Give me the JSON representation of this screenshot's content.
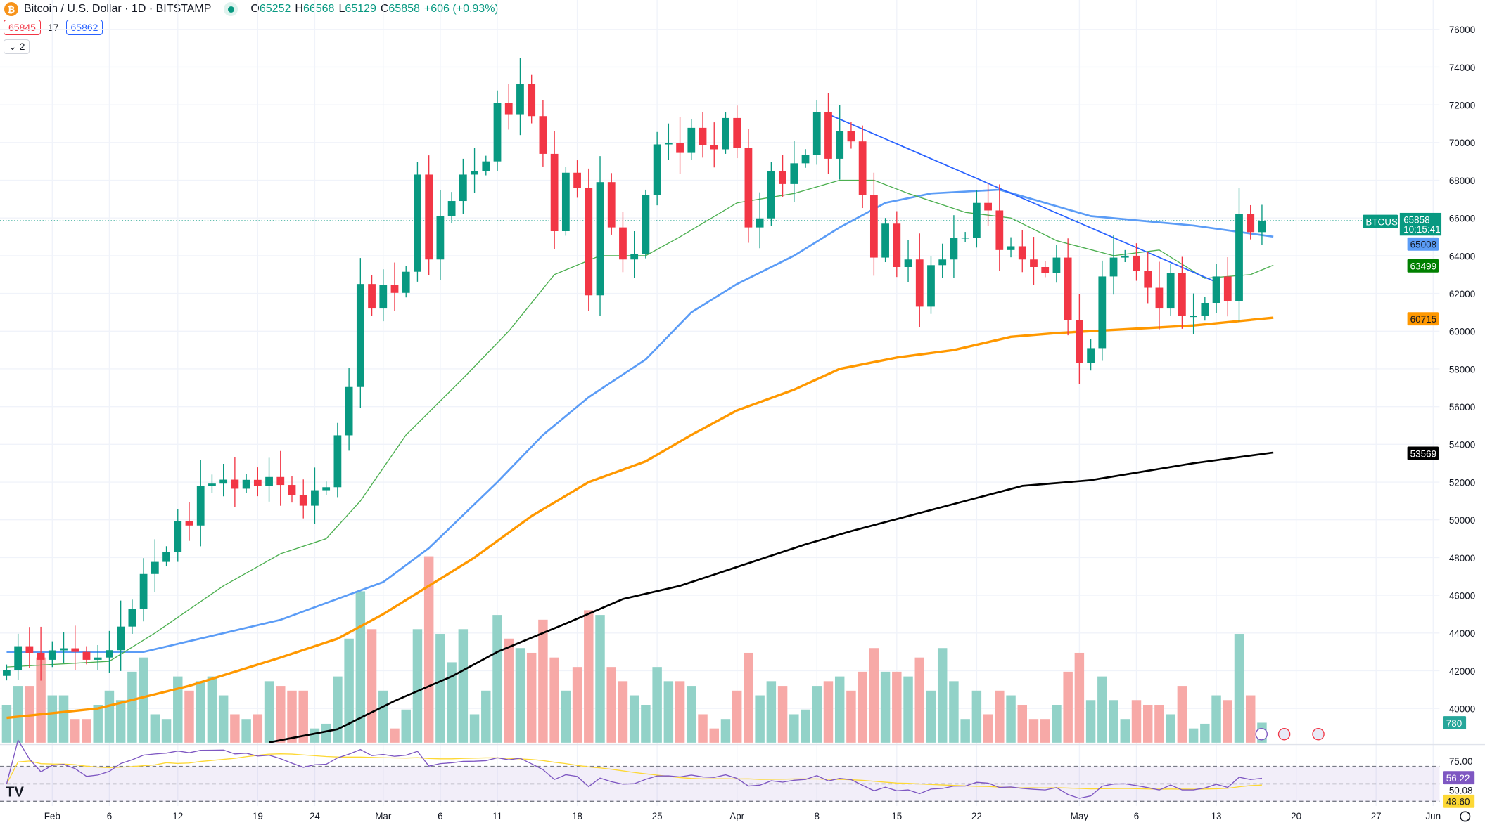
{
  "header": {
    "symbol_icon": "bitcoin-icon",
    "title": "Bitcoin / U.S. Dollar · 1D · BITSTAMP",
    "market_status": "open",
    "open_label": "O",
    "open": "65252",
    "high_label": "H",
    "high": "66568",
    "low_label": "L",
    "low": "65129",
    "close_label": "C",
    "close": "65858",
    "change": "+606 (+0.93%)"
  },
  "trade": {
    "sell": "65845",
    "spread": "17",
    "buy": "65862"
  },
  "indicators_toggle": "2",
  "colors": {
    "up": "#089981",
    "down": "#f23645",
    "vol_up": "#92d2c8",
    "vol_down": "#f7a9a7",
    "ma20": "#4caf50",
    "ma50": "#5b9cf6",
    "ma100": "#ff9800",
    "ma200": "#000000",
    "trendline": "#2962ff",
    "rsi": "#7e57c2",
    "rsi_ma": "#fdd835"
  },
  "price_axis": {
    "ticks": [
      "76000",
      "74000",
      "72000",
      "70000",
      "68000",
      "66000",
      "64000",
      "62000",
      "60000",
      "58000",
      "56000",
      "54000",
      "52000",
      "50000",
      "48000",
      "46000",
      "44000",
      "42000",
      "40000"
    ]
  },
  "time_axis": {
    "ticks": [
      {
        "label": "Feb",
        "date": "02-01"
      },
      {
        "label": "6",
        "date": "02-06"
      },
      {
        "label": "12",
        "date": "02-12"
      },
      {
        "label": "19",
        "date": "02-19"
      },
      {
        "label": "24",
        "date": "02-24"
      },
      {
        "label": "Mar",
        "date": "03-01"
      },
      {
        "label": "6",
        "date": "03-06"
      },
      {
        "label": "11",
        "date": "03-11"
      },
      {
        "label": "18",
        "date": "03-18"
      },
      {
        "label": "25",
        "date": "03-25"
      },
      {
        "label": "Apr",
        "date": "04-01"
      },
      {
        "label": "8",
        "date": "04-08"
      },
      {
        "label": "15",
        "date": "04-15"
      },
      {
        "label": "22",
        "date": "04-22"
      },
      {
        "label": "May",
        "date": "05-01"
      },
      {
        "label": "6",
        "date": "05-06"
      },
      {
        "label": "13",
        "date": "05-13"
      },
      {
        "label": "20",
        "date": "05-20"
      },
      {
        "label": "27",
        "date": "05-27"
      },
      {
        "label": "Jun",
        "date": "06-01"
      }
    ]
  },
  "labels": {
    "symbol": "BTCUSD",
    "last_price": "65858",
    "countdown": "10:15:41",
    "ma50": "65008",
    "ma20": "63499",
    "ma100": "60715",
    "ma200": "53569",
    "volume": "780",
    "rsi_top": "75.00",
    "rsi": "56.22",
    "rsi_mid": "50.08",
    "rsi_ma": "48.60"
  },
  "chart_data": {
    "type": "candlestick",
    "first_date": "01-28",
    "close": [
      42030,
      43300,
      42950,
      42580,
      43080,
      43190,
      43000,
      42580,
      42700,
      43090,
      44340,
      45290,
      47130,
      47770,
      48300,
      49920,
      49700,
      51800,
      51920,
      52130,
      51650,
      52120,
      51780,
      52270,
      51850,
      51300,
      50750,
      51570,
      51730,
      54480,
      57040,
      62500,
      61200,
      62440,
      62030,
      63150,
      68300,
      63800,
      66100,
      66900,
      68300,
      68500,
      69000,
      72100,
      71500,
      73100,
      71400,
      69400,
      65300,
      68400,
      67600,
      61900,
      67900,
      65500,
      63800,
      64100,
      67200,
      69900,
      69990,
      69450,
      70780,
      69870,
      69640,
      71300,
      69700,
      65500,
      65980,
      68500,
      67800,
      68900,
      69350,
      71600,
      69140,
      70600,
      70060,
      67200,
      63900,
      65700,
      63400,
      63800,
      61300,
      63500,
      63800,
      64950,
      64960,
      66800,
      66400,
      64300,
      64500,
      63800,
      63400,
      63100,
      63900,
      60600,
      58300,
      59100,
      62900,
      63900,
      64000,
      63200,
      62300,
      61200,
      63100,
      60800,
      60800,
      61500,
      62900,
      61600,
      66200,
      65250,
      65858
    ],
    "volume": [
      1480,
      2220,
      2220,
      3330,
      1850,
      1850,
      925,
      925,
      1480,
      2035,
      1665,
      2775,
      3330,
      1110,
      925,
      2590,
      2035,
      2405,
      2590,
      1850,
      1110,
      925,
      1110,
      2405,
      2220,
      2035,
      2035,
      555,
      740,
      2590,
      4070,
      5920,
      4440,
      2035,
      555,
      1295,
      4440,
      7290,
      4255,
      3145,
      4440,
      1110,
      2035,
      4995,
      4070,
      3700,
      3515,
      4810,
      3330,
      2035,
      2960,
      5180,
      4995,
      2960,
      2405,
      1850,
      1480,
      2960,
      2405,
      2405,
      2220,
      1110,
      555,
      925,
      2035,
      3515,
      1850,
      2405,
      2220,
      1110,
      1295,
      2220,
      2405,
      2590,
      2035,
      2775,
      3700,
      2775,
      2775,
      2590,
      3330,
      2035,
      3700,
      2405,
      925,
      2035,
      1110,
      2035,
      1850,
      1480,
      925,
      925,
      1480,
      2775,
      3515,
      1665,
      2590,
      1665,
      925,
      1665,
      1480,
      1480,
      1110,
      2220,
      555,
      740,
      1850,
      1665,
      4255,
      1850,
      780
    ],
    "ma20": [
      [
        "01-28",
        42200
      ],
      [
        "02-06",
        42500
      ],
      [
        "02-10",
        44000
      ],
      [
        "02-16",
        46500
      ],
      [
        "02-21",
        48200
      ],
      [
        "02-25",
        49000
      ],
      [
        "02-28",
        51000
      ],
      [
        "03-03",
        54500
      ],
      [
        "03-08",
        57500
      ],
      [
        "03-12",
        60000
      ],
      [
        "03-16",
        63000
      ],
      [
        "03-20",
        64000
      ],
      [
        "03-24",
        64000
      ],
      [
        "03-27",
        65000
      ],
      [
        "04-01",
        66800
      ],
      [
        "04-06",
        67300
      ],
      [
        "04-10",
        68000
      ],
      [
        "04-13",
        68000
      ],
      [
        "04-16",
        67300
      ],
      [
        "04-21",
        66300
      ],
      [
        "04-25",
        66000
      ],
      [
        "04-29",
        64800
      ],
      [
        "05-04",
        64000
      ],
      [
        "05-08",
        64300
      ],
      [
        "05-12",
        62800
      ],
      [
        "05-16",
        63000
      ],
      [
        "05-18",
        63499
      ]
    ],
    "ma50": [
      [
        "01-28",
        43000
      ],
      [
        "02-09",
        43000
      ],
      [
        "02-21",
        44700
      ],
      [
        "03-01",
        46700
      ],
      [
        "03-05",
        48500
      ],
      [
        "03-11",
        52000
      ],
      [
        "03-15",
        54500
      ],
      [
        "03-19",
        56500
      ],
      [
        "03-24",
        58500
      ],
      [
        "03-28",
        61000
      ],
      [
        "04-01",
        62500
      ],
      [
        "04-06",
        64000
      ],
      [
        "04-10",
        65500
      ],
      [
        "04-14",
        66800
      ],
      [
        "04-18",
        67300
      ],
      [
        "04-24",
        67500
      ],
      [
        "04-28",
        66800
      ],
      [
        "05-02",
        66100
      ],
      [
        "05-11",
        65600
      ],
      [
        "05-18",
        65008
      ]
    ],
    "ma100": [
      [
        "01-28",
        39500
      ],
      [
        "02-05",
        40000
      ],
      [
        "02-13",
        41200
      ],
      [
        "02-21",
        42700
      ],
      [
        "02-26",
        43700
      ],
      [
        "03-01",
        45000
      ],
      [
        "03-05",
        46500
      ],
      [
        "03-09",
        48000
      ],
      [
        "03-14",
        50200
      ],
      [
        "03-19",
        52000
      ],
      [
        "03-24",
        53100
      ],
      [
        "03-28",
        54500
      ],
      [
        "04-01",
        55800
      ],
      [
        "04-06",
        56900
      ],
      [
        "04-10",
        58000
      ],
      [
        "04-15",
        58600
      ],
      [
        "04-20",
        59000
      ],
      [
        "04-25",
        59700
      ],
      [
        "04-29",
        59900
      ],
      [
        "05-05",
        60100
      ],
      [
        "05-11",
        60300
      ],
      [
        "05-18",
        60715
      ]
    ],
    "ma200": [
      [
        "02-20",
        38200
      ],
      [
        "02-26",
        38900
      ],
      [
        "03-02",
        40400
      ],
      [
        "03-07",
        41700
      ],
      [
        "03-11",
        43000
      ],
      [
        "03-17",
        44500
      ],
      [
        "03-22",
        45800
      ],
      [
        "03-27",
        46500
      ],
      [
        "04-01",
        47500
      ],
      [
        "04-07",
        48700
      ],
      [
        "04-11",
        49400
      ],
      [
        "04-16",
        50200
      ],
      [
        "04-21",
        51000
      ],
      [
        "04-26",
        51800
      ],
      [
        "05-02",
        52100
      ],
      [
        "05-06",
        52500
      ],
      [
        "05-11",
        53000
      ],
      [
        "05-18",
        53569
      ]
    ],
    "trendline": [
      [
        "04-09",
        71500
      ],
      [
        "05-13",
        62600
      ]
    ],
    "rsi_band": [
      30,
      70
    ]
  }
}
